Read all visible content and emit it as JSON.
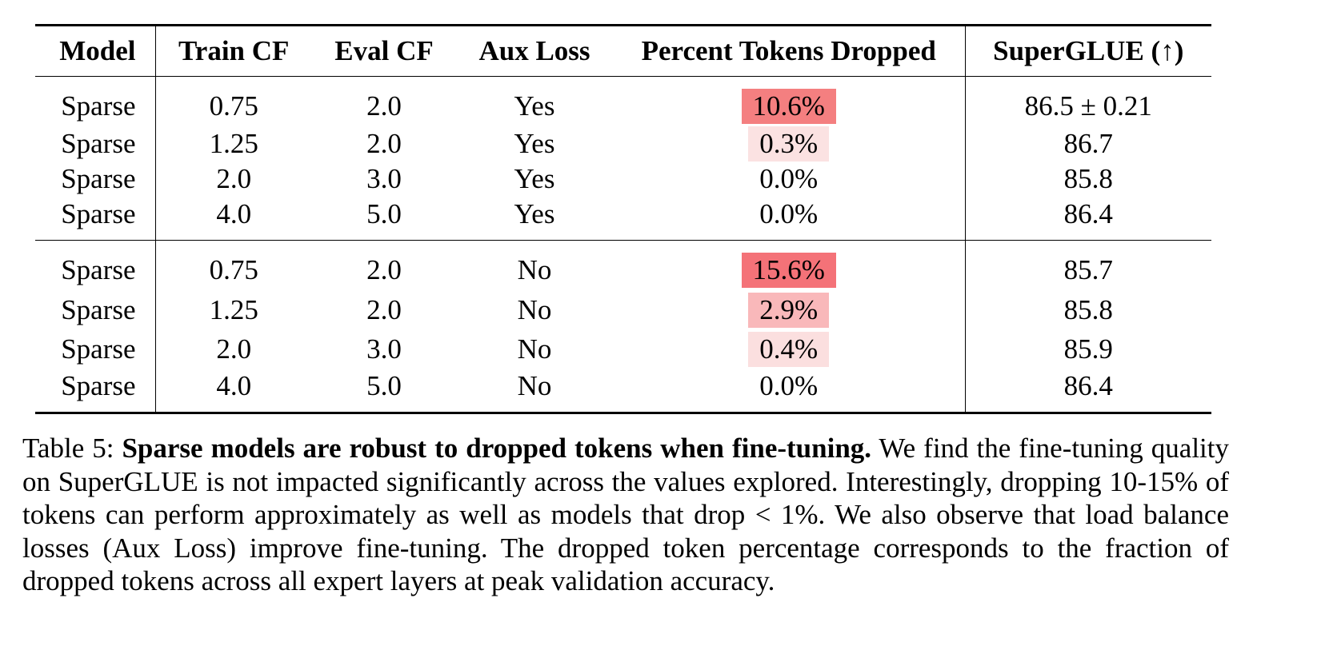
{
  "table": {
    "headers": {
      "model": "Model",
      "train_cf": "Train CF",
      "eval_cf": "Eval CF",
      "aux_loss": "Aux Loss",
      "percent_dropped": "Percent Tokens Dropped",
      "superglue": "SuperGLUE (↑)"
    },
    "groups": [
      {
        "rows": [
          {
            "model": "Sparse",
            "train_cf": "0.75",
            "eval_cf": "2.0",
            "aux_loss": "Yes",
            "percent_dropped": "10.6%",
            "superglue": "86.5 ± 0.21",
            "highlight": "#f47f80"
          },
          {
            "model": "Sparse",
            "train_cf": "1.25",
            "eval_cf": "2.0",
            "aux_loss": "Yes",
            "percent_dropped": "0.3%",
            "superglue": "86.7",
            "highlight": "#fbe2e2"
          },
          {
            "model": "Sparse",
            "train_cf": "2.0",
            "eval_cf": "3.0",
            "aux_loss": "Yes",
            "percent_dropped": "0.0%",
            "superglue": "85.8",
            "highlight": ""
          },
          {
            "model": "Sparse",
            "train_cf": "4.0",
            "eval_cf": "5.0",
            "aux_loss": "Yes",
            "percent_dropped": "0.0%",
            "superglue": "86.4",
            "highlight": ""
          }
        ]
      },
      {
        "rows": [
          {
            "model": "Sparse",
            "train_cf": "0.75",
            "eval_cf": "2.0",
            "aux_loss": "No",
            "percent_dropped": "15.6%",
            "superglue": "85.7",
            "highlight": "#f47278"
          },
          {
            "model": "Sparse",
            "train_cf": "1.25",
            "eval_cf": "2.0",
            "aux_loss": "No",
            "percent_dropped": "2.9%",
            "superglue": "85.8",
            "highlight": "#f9b8ba"
          },
          {
            "model": "Sparse",
            "train_cf": "2.0",
            "eval_cf": "3.0",
            "aux_loss": "No",
            "percent_dropped": "0.4%",
            "superglue": "85.9",
            "highlight": "#fbdfdf"
          },
          {
            "model": "Sparse",
            "train_cf": "4.0",
            "eval_cf": "5.0",
            "aux_loss": "No",
            "percent_dropped": "0.0%",
            "superglue": "86.4",
            "highlight": ""
          }
        ]
      }
    ]
  },
  "caption": {
    "label": "Table 5:",
    "bold": "Sparse models are robust to dropped tokens when fine-tuning.",
    "body": "We find the fine-tuning quality on SuperGLUE is not impacted significantly across the values explored. Interestingly, dropping 10-15% of tokens can perform approximately as well as models that drop < 1%.  We also observe that load balance losses (Aux Loss) improve fine-tuning.  The dropped token percentage corresponds to the fraction of dropped tokens across all expert layers at peak validation accuracy."
  }
}
